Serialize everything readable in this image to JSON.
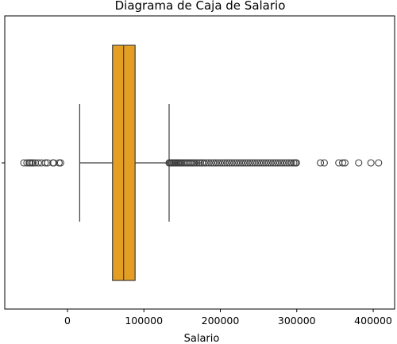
{
  "colors": {
    "box_fill": "#e49f22",
    "edge": "#3d3d3d",
    "frame": "#000000",
    "background": "#ffffff"
  },
  "chart_data": {
    "type": "box",
    "orientation": "horizontal",
    "title": "Diagrama de Caja de Salario",
    "xlabel": "Salario",
    "ylabel": "",
    "xlim": [
      -82000,
      428000
    ],
    "xticks": [
      0,
      100000,
      200000,
      300000,
      400000
    ],
    "xtick_labels": [
      "0",
      "100000",
      "200000",
      "300000",
      "400000"
    ],
    "grid": false,
    "box": {
      "q1": 59000,
      "median": 73500,
      "q3": 88500,
      "whisker_low": 16000,
      "whisker_high": 133000
    },
    "outliers": [
      -57000,
      -53000,
      -50000,
      -49000,
      -47000,
      -45000,
      -42000,
      -38000,
      -34000,
      -29000,
      -26000,
      -19000,
      -18000,
      -11000,
      -9000,
      133000,
      134000,
      135500,
      137000,
      138500,
      140000,
      141500,
      143000,
      144500,
      146000,
      147500,
      149000,
      151000,
      153000,
      155000,
      157000,
      159000,
      161000,
      163000,
      165000,
      167000,
      169500,
      172000,
      174000,
      176500,
      179000,
      182000,
      185000,
      188000,
      191000,
      194000,
      197000,
      200000,
      203000,
      206000,
      209000,
      212000,
      215000,
      218000,
      221000,
      224000,
      227000,
      230000,
      233000,
      236000,
      239000,
      242000,
      245000,
      248000,
      251000,
      254000,
      257000,
      260000,
      263000,
      266000,
      269000,
      272000,
      275000,
      278000,
      281000,
      284000,
      287000,
      290000,
      293000,
      296000,
      298000,
      299500,
      331000,
      336000,
      355000,
      360000,
      363000,
      381000,
      397000,
      407000
    ]
  }
}
